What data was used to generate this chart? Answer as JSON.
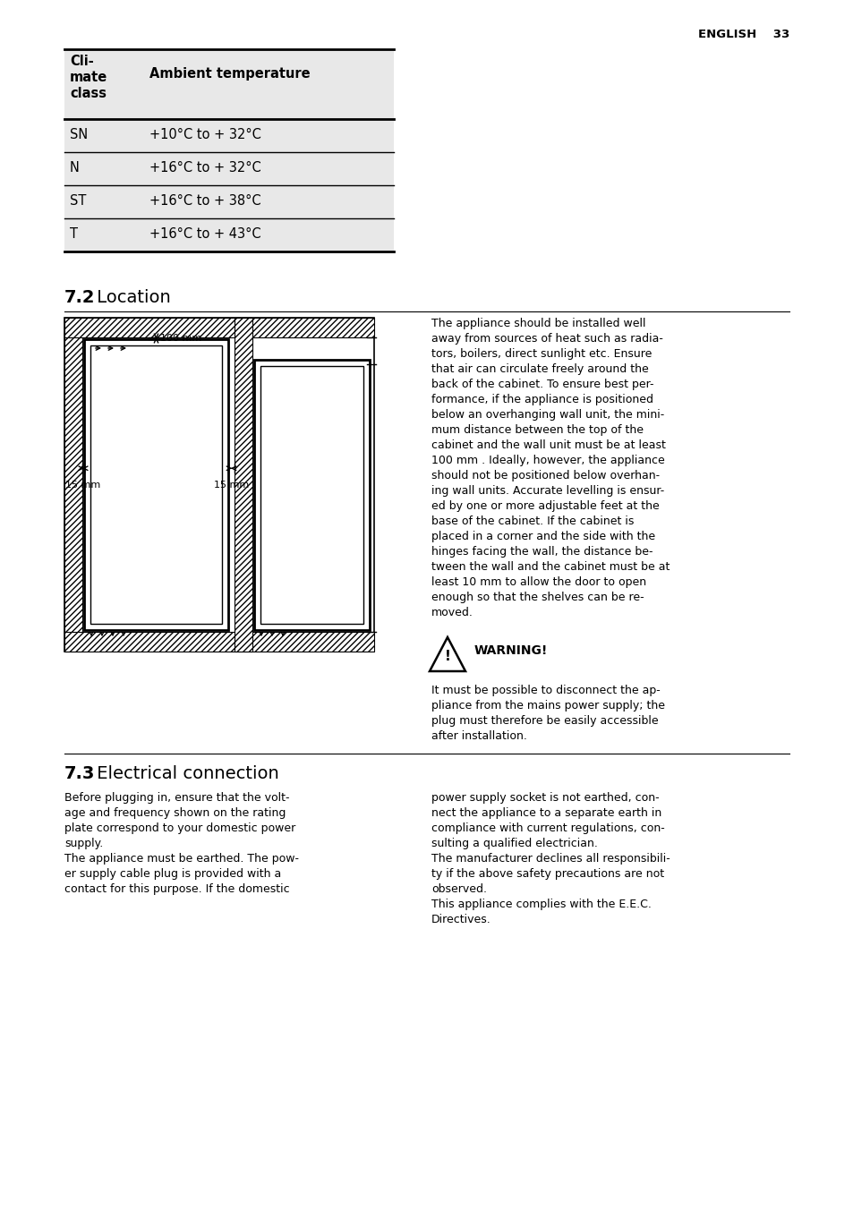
{
  "page_header_right": "ENGLISH    33",
  "table_header_col1": "Cli-\nmate\nclass",
  "table_header_col2": "Ambient temperature",
  "table_rows": [
    [
      "SN",
      "+10°C to + 32°C"
    ],
    [
      "N",
      "+16°C to + 32°C"
    ],
    [
      "ST",
      "+16°C to + 38°C"
    ],
    [
      "T",
      "+16°C to + 43°C"
    ]
  ],
  "section_72_bold": "7.2",
  "section_72_text": " Location",
  "warning_label": "WARNING!",
  "section_73_bold": "7.3",
  "section_73_text": " Electrical connection",
  "loc_para_lines": [
    "The appliance should be installed well",
    "away from sources of heat such as radia-",
    "tors, boilers, direct sunlight etc. Ensure",
    "that air can circulate freely around the",
    "back of the cabinet. To ensure best per-",
    "formance, if the appliance is positioned",
    "below an overhanging wall unit, the mini-",
    "mum distance between the top of the",
    "cabinet and the wall unit must be at least",
    "100 mm . Ideally, however, the appliance",
    "should not be positioned below overhan-",
    "ing wall units. Accurate levelling is ensur-",
    "ed by one or more adjustable feet at the",
    "base of the cabinet. If the cabinet is",
    "placed in a corner and the side with the",
    "hinges facing the wall, the distance be-",
    "tween the wall and the cabinet must be at",
    "least 10 mm to allow the door to open",
    "enough so that the shelves can be re-",
    "moved."
  ],
  "warn_text_lines": [
    "It must be possible to disconnect the ap-",
    "pliance from the mains power supply; the",
    "plug must therefore be easily accessible",
    "after installation."
  ],
  "elec_left_lines": [
    "Before plugging in, ensure that the volt-",
    "age and frequency shown on the rating",
    "plate correspond to your domestic power",
    "supply.",
    "The appliance must be earthed. The pow-",
    "er supply cable plug is provided with a",
    "contact for this purpose. If the domestic"
  ],
  "elec_right_lines": [
    "power supply socket is not earthed, con-",
    "nect the appliance to a separate earth in",
    "compliance with current regulations, con-",
    "sulting a qualified electrician.",
    "The manufacturer declines all responsibili-",
    "ty if the above safety precautions are not",
    "observed.",
    "This appliance complies with the E.E.C.",
    "Directives."
  ],
  "bg_color": "#ffffff",
  "text_color": "#000000",
  "table_bg": "#e8e8e8"
}
